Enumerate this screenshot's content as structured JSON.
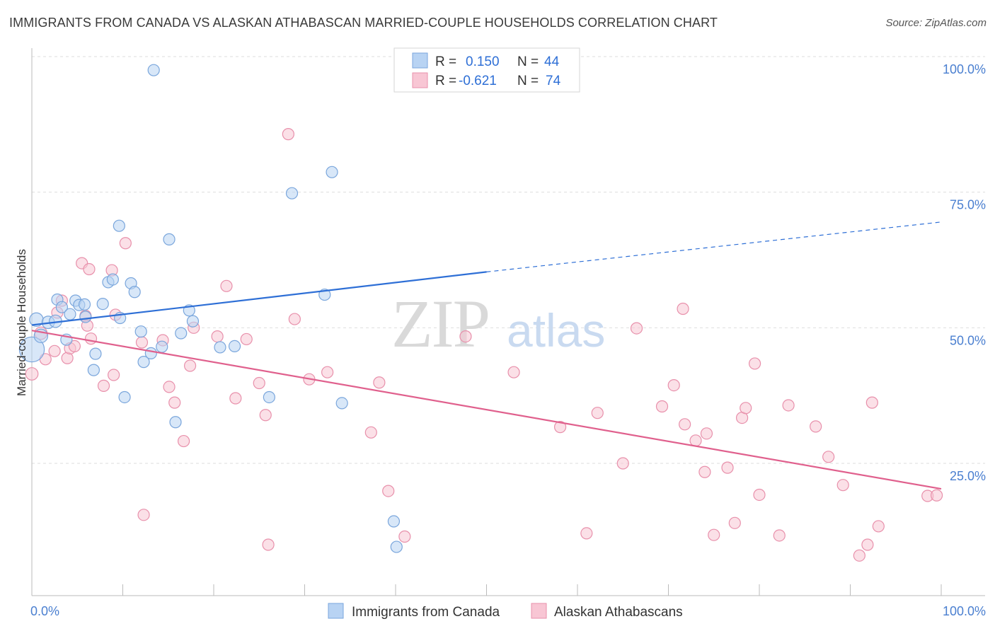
{
  "title": "IMMIGRANTS FROM CANADA VS ALASKAN ATHABASCAN MARRIED-COUPLE HOUSEHOLDS CORRELATION CHART",
  "source": "Source: ZipAtlas.com",
  "watermark": {
    "zip": "ZIP",
    "atlas": "atlas"
  },
  "colors": {
    "blue_fill": "#b8d3f3",
    "blue_stroke": "#7aa6dc",
    "blue_line": "#2e6fd6",
    "pink_fill": "#f8c6d4",
    "pink_stroke": "#e890ab",
    "pink_line": "#e0608d",
    "axis_text": "#4a7fd0",
    "grid": "#dedede"
  },
  "legend": {
    "r_label": "R =",
    "n_label": "N =",
    "rows": [
      {
        "r": "0.150",
        "n": "44",
        "color": "blue"
      },
      {
        "r": "-0.621",
        "n": "74",
        "color": "pink"
      }
    ]
  },
  "chart_data": {
    "type": "scatter",
    "ylabel": "Married-couple Households",
    "xlim": [
      0,
      100
    ],
    "ylim": [
      0,
      103
    ],
    "x_tick_labels": [
      "0.0%",
      "100.0%"
    ],
    "y_ticks": [
      25,
      50,
      75,
      100
    ],
    "y_tick_labels": [
      "25.0%",
      "50.0%",
      "75.0%",
      "100.0%"
    ],
    "grid": "horizontal dashed",
    "legend_placement": "top-center",
    "series": [
      {
        "name": "Immigrants from Canada",
        "color": "blue",
        "trend": {
          "x0": 0,
          "y0": 50.5,
          "x1": 50,
          "y1": 60.3,
          "dash_to": 100,
          "dash_y": 69.5
        },
        "points": [
          [
            0,
            46,
            22
          ],
          [
            0.5,
            51.5,
            12
          ],
          [
            1,
            48.5,
            12
          ],
          [
            1.8,
            51,
            11
          ],
          [
            2.6,
            51.2,
            11
          ],
          [
            2.8,
            55.2,
            10
          ],
          [
            3.3,
            53.8,
            10
          ],
          [
            3.8,
            47.8,
            10
          ],
          [
            4.2,
            52.5,
            10
          ],
          [
            4.8,
            55,
            10
          ],
          [
            5.2,
            54.2,
            10
          ],
          [
            5.8,
            54.3,
            10
          ],
          [
            5.9,
            52,
            10
          ],
          [
            7,
            45.2,
            10
          ],
          [
            6.8,
            42.2,
            10
          ],
          [
            7.8,
            54.4,
            10
          ],
          [
            8.4,
            58.4,
            10
          ],
          [
            8.9,
            58.9,
            10
          ],
          [
            9.7,
            51.8,
            10
          ],
          [
            10.2,
            37.2,
            10
          ],
          [
            9.6,
            68.8,
            10
          ],
          [
            10.9,
            58.2,
            10
          ],
          [
            11.3,
            56.6,
            10
          ],
          [
            12.0,
            49.3,
            10
          ],
          [
            12.3,
            43.7,
            10
          ],
          [
            13.1,
            45.3,
            10
          ],
          [
            13.4,
            97.5,
            10
          ],
          [
            14.3,
            46.5,
            10
          ],
          [
            15.1,
            66.3,
            10
          ],
          [
            15.8,
            32.6,
            10
          ],
          [
            16.4,
            49.0,
            10
          ],
          [
            17.3,
            53.2,
            10
          ],
          [
            17.7,
            51.2,
            10
          ],
          [
            20.7,
            46.4,
            10
          ],
          [
            22.3,
            46.6,
            10
          ],
          [
            26.1,
            37.2,
            10
          ],
          [
            28.6,
            74.8,
            10
          ],
          [
            32.2,
            56.1,
            10
          ],
          [
            33.0,
            78.7,
            10
          ],
          [
            34.1,
            36.1,
            10
          ],
          [
            39.8,
            14.3,
            10
          ],
          [
            40.1,
            9.6,
            10
          ],
          [
            47.6,
            100,
            10
          ],
          [
            50.4,
            100,
            10
          ]
        ]
      },
      {
        "name": "Alaskan Athabascans",
        "color": "pink",
        "trend": {
          "x0": 0,
          "y0": 49.5,
          "x1": 100,
          "y1": 20.3
        },
        "points": [
          [
            0,
            41.5,
            11
          ],
          [
            1,
            49,
            11
          ],
          [
            1.5,
            44.2,
            10
          ],
          [
            2.5,
            45.7,
            10
          ],
          [
            2.8,
            52.8,
            10
          ],
          [
            3.3,
            55,
            10
          ],
          [
            3.9,
            44.4,
            10
          ],
          [
            4.2,
            46.2,
            10
          ],
          [
            4.7,
            46.6,
            10
          ],
          [
            5.5,
            61.9,
            10
          ],
          [
            5.9,
            52.2,
            10
          ],
          [
            6.1,
            50.4,
            10
          ],
          [
            6.3,
            60.8,
            10
          ],
          [
            6.5,
            48.0,
            10
          ],
          [
            7.9,
            39.3,
            10
          ],
          [
            8.8,
            60.6,
            10
          ],
          [
            9.0,
            41.3,
            10
          ],
          [
            9.2,
            52.4,
            10
          ],
          [
            10.3,
            65.6,
            10
          ],
          [
            12.1,
            47.3,
            10
          ],
          [
            12.3,
            15.5,
            10
          ],
          [
            14.4,
            47.7,
            10
          ],
          [
            15.1,
            39.1,
            10
          ],
          [
            15.7,
            36.2,
            10
          ],
          [
            16.7,
            29.1,
            10
          ],
          [
            17.4,
            43.0,
            10
          ],
          [
            17.8,
            50.0,
            10
          ],
          [
            20.4,
            48.4,
            10
          ],
          [
            21.4,
            57.7,
            10
          ],
          [
            22.4,
            37.0,
            10
          ],
          [
            23.6,
            47.9,
            10
          ],
          [
            25.0,
            39.8,
            10
          ],
          [
            25.7,
            33.9,
            10
          ],
          [
            26.0,
            10.0,
            10
          ],
          [
            28.2,
            85.7,
            10
          ],
          [
            28.9,
            51.6,
            10
          ],
          [
            30.5,
            40.5,
            10
          ],
          [
            32.5,
            41.8,
            10
          ],
          [
            37.3,
            30.7,
            10
          ],
          [
            38.2,
            39.9,
            10
          ],
          [
            39.2,
            19.9,
            10
          ],
          [
            41.0,
            11.5,
            10
          ],
          [
            47.7,
            48.4,
            10
          ],
          [
            53.0,
            41.8,
            10
          ],
          [
            58.1,
            31.7,
            10
          ],
          [
            61.0,
            12.1,
            10
          ],
          [
            62.2,
            34.3,
            10
          ],
          [
            65.0,
            25.0,
            10
          ],
          [
            66.5,
            49.9,
            10
          ],
          [
            69.3,
            35.5,
            10
          ],
          [
            70.6,
            39.4,
            10
          ],
          [
            71.6,
            53.5,
            10
          ],
          [
            71.8,
            32.2,
            10
          ],
          [
            73.0,
            29.2,
            10
          ],
          [
            74.0,
            23.4,
            10
          ],
          [
            74.2,
            30.5,
            10
          ],
          [
            75.0,
            11.8,
            10
          ],
          [
            76.5,
            24.2,
            10
          ],
          [
            77.3,
            14.0,
            10
          ],
          [
            78.1,
            33.4,
            10
          ],
          [
            78.5,
            35.2,
            10
          ],
          [
            79.5,
            43.4,
            10
          ],
          [
            80.0,
            19.2,
            10
          ],
          [
            82.2,
            11.7,
            10
          ],
          [
            83.2,
            35.7,
            10
          ],
          [
            86.2,
            31.8,
            10
          ],
          [
            87.6,
            26.2,
            10
          ],
          [
            89.2,
            21.0,
            10
          ],
          [
            91.0,
            8.0,
            10
          ],
          [
            91.9,
            10.0,
            10
          ],
          [
            92.4,
            36.2,
            10
          ],
          [
            93.1,
            13.4,
            10
          ],
          [
            98.5,
            19.0,
            10
          ],
          [
            99.5,
            19.1,
            10
          ]
        ]
      }
    ]
  }
}
